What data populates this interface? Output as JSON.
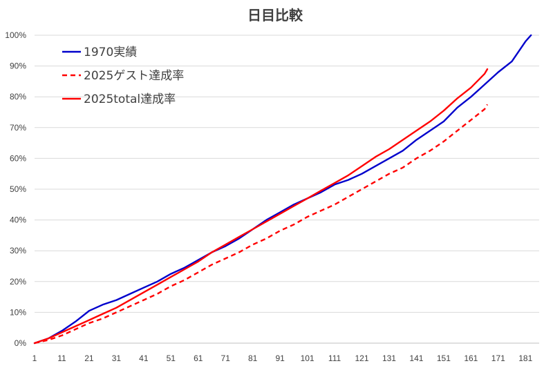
{
  "chart_data": {
    "type": "line",
    "title": "日目比較",
    "xlabel": "",
    "ylabel": "",
    "xlim": [
      1,
      186
    ],
    "ylim": [
      0,
      100
    ],
    "x_ticks": [
      "1",
      "11",
      "21",
      "31",
      "41",
      "51",
      "61",
      "71",
      "81",
      "91",
      "101",
      "111",
      "121",
      "131",
      "141",
      "151",
      "161",
      "171",
      "181"
    ],
    "y_ticks": [
      "0%",
      "10%",
      "20%",
      "30%",
      "40%",
      "50%",
      "60%",
      "70%",
      "80%",
      "90%",
      "100%"
    ],
    "grid": true,
    "legend_position": "top-left",
    "series": [
      {
        "name": "1970実績",
        "color": "#0000cc",
        "style": "solid",
        "x": [
          1,
          6,
          11,
          16,
          21,
          26,
          31,
          36,
          41,
          46,
          51,
          56,
          61,
          66,
          71,
          76,
          81,
          86,
          91,
          96,
          101,
          106,
          111,
          116,
          121,
          126,
          131,
          136,
          141,
          146,
          151,
          156,
          161,
          166,
          171,
          176,
          181,
          183
        ],
        "y": [
          0,
          1.5,
          4,
          7,
          10.5,
          12.5,
          14,
          16,
          18,
          20,
          22.5,
          24.5,
          27,
          29.5,
          31.5,
          34,
          37,
          40,
          42.5,
          45,
          47,
          49,
          51.5,
          53,
          55,
          57.5,
          60,
          62.5,
          66,
          69,
          72,
          76.5,
          80,
          84,
          88,
          91.5,
          98,
          100
        ]
      },
      {
        "name": "2025ゲスト達成率",
        "color": "#ff0000",
        "style": "dashed",
        "x": [
          1,
          6,
          11,
          16,
          21,
          26,
          31,
          36,
          41,
          46,
          51,
          56,
          61,
          66,
          71,
          76,
          81,
          86,
          91,
          96,
          101,
          106,
          111,
          116,
          121,
          126,
          131,
          136,
          141,
          146,
          151,
          156,
          161,
          166,
          167
        ],
        "y": [
          0,
          1,
          2.5,
          4.5,
          6.5,
          8,
          10,
          12,
          14,
          16,
          18.5,
          20.5,
          23,
          25.5,
          27.5,
          29.5,
          32,
          34,
          36.5,
          38.5,
          41,
          43,
          45,
          47.5,
          50,
          52.5,
          55,
          57,
          60,
          62.5,
          65.5,
          69,
          72.5,
          76,
          77.5
        ]
      },
      {
        "name": "2025total達成率",
        "color": "#ff0000",
        "style": "solid",
        "x": [
          1,
          6,
          11,
          16,
          21,
          26,
          31,
          36,
          41,
          46,
          51,
          56,
          61,
          66,
          71,
          76,
          81,
          86,
          91,
          96,
          101,
          106,
          111,
          116,
          121,
          126,
          131,
          136,
          141,
          146,
          151,
          156,
          161,
          166,
          167
        ],
        "y": [
          0,
          1.5,
          3.5,
          5.5,
          7.5,
          9.5,
          11.5,
          14,
          16.5,
          19,
          21.5,
          24,
          26.5,
          29.5,
          32,
          34.5,
          37,
          39.5,
          42,
          44.5,
          47,
          49.5,
          52,
          54.5,
          57.5,
          60.5,
          63,
          66,
          69,
          72,
          75.5,
          79.5,
          83,
          87.5,
          89
        ]
      }
    ]
  },
  "legend": {
    "items": [
      {
        "label": "1970実績"
      },
      {
        "label": "2025ゲスト達成率"
      },
      {
        "label": "2025total達成率"
      }
    ]
  }
}
